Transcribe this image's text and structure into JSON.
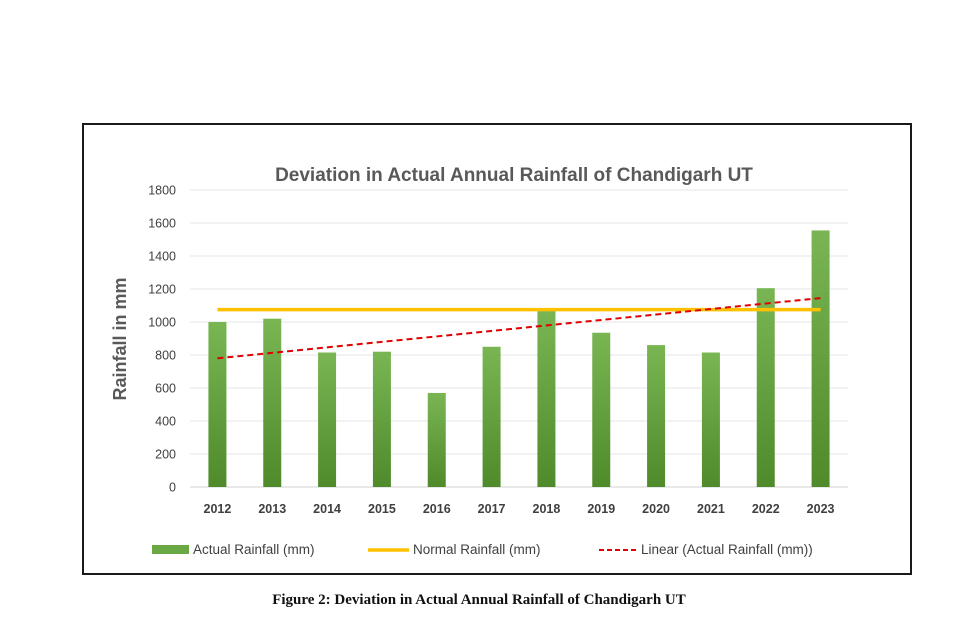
{
  "chart_data": {
    "type": "bar",
    "title": "Deviation in Actual Annual Rainfall of Chandigarh UT",
    "xlabel": "",
    "ylabel": "Rainfall in mm",
    "ylim": [
      0,
      1800
    ],
    "yticks": [
      0,
      200,
      400,
      600,
      800,
      1000,
      1200,
      1400,
      1600,
      1800
    ],
    "grid": true,
    "legend_position": "bottom",
    "categories": [
      "2012",
      "2013",
      "2014",
      "2015",
      "2016",
      "2017",
      "2018",
      "2019",
      "2020",
      "2021",
      "2022",
      "2023"
    ],
    "series": [
      {
        "name": "Actual Rainfall  (mm)",
        "type": "bar",
        "color": "#70ad47",
        "values": [
          1000,
          1020,
          815,
          820,
          570,
          850,
          1075,
          935,
          860,
          815,
          1205,
          1555
        ]
      },
      {
        "name": "Normal Rainfall  (mm)",
        "type": "line",
        "color": "#ffc000",
        "values": [
          1075,
          1075,
          1075,
          1075,
          1075,
          1075,
          1075,
          1075,
          1075,
          1075,
          1075,
          1075
        ]
      },
      {
        "name": "Linear (Actual Rainfall  (mm))",
        "type": "trendline",
        "style": "dashed",
        "color": "#e00000",
        "values": [
          780,
          1145
        ],
        "x": [
          "2012",
          "2023"
        ]
      }
    ]
  },
  "caption": "Figure 2: Deviation in Actual Annual Rainfall of Chandigarh UT"
}
